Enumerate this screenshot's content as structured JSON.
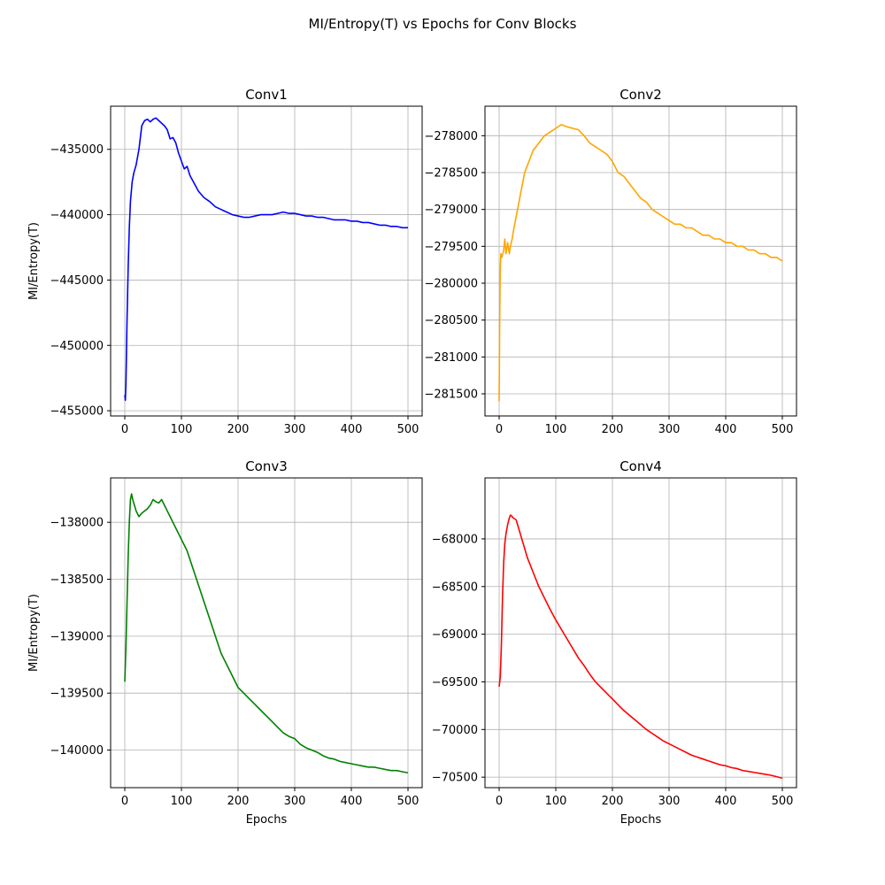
{
  "figure": {
    "suptitle": "MI/Entropy(T) vs Epochs for Conv Blocks"
  },
  "chart_data": [
    {
      "type": "line",
      "title": "Conv1",
      "xlabel": "",
      "ylabel": "MI/Entropy(T)",
      "color": "#0000ff",
      "xlim": [
        -25,
        525
      ],
      "ylim": [
        -455400,
        -431700
      ],
      "xticks": [
        0,
        100,
        200,
        300,
        400,
        500
      ],
      "xtick_labels": [
        "0",
        "100",
        "200",
        "300",
        "400",
        "500"
      ],
      "yticks": [
        -455000,
        -450000,
        -445000,
        -440000,
        -435000
      ],
      "ytick_labels": [
        "−455000",
        "−450000",
        "−445000",
        "−440000",
        "−435000"
      ],
      "grid": true,
      "x": [
        0,
        1,
        2,
        3,
        4,
        6,
        8,
        10,
        13,
        16,
        20,
        25,
        30,
        35,
        40,
        45,
        50,
        55,
        60,
        65,
        70,
        75,
        80,
        85,
        90,
        95,
        100,
        105,
        110,
        115,
        120,
        130,
        140,
        150,
        160,
        170,
        180,
        190,
        200,
        210,
        220,
        230,
        240,
        250,
        260,
        270,
        280,
        290,
        300,
        310,
        320,
        330,
        340,
        350,
        360,
        370,
        380,
        390,
        400,
        410,
        420,
        430,
        440,
        450,
        460,
        470,
        480,
        490,
        500
      ],
      "y": [
        -453800,
        -454200,
        -453000,
        -450500,
        -448000,
        -444000,
        -441000,
        -439000,
        -437500,
        -436800,
        -436200,
        -435000,
        -433200,
        -432800,
        -432700,
        -432900,
        -432700,
        -432600,
        -432800,
        -433000,
        -433200,
        -433500,
        -434200,
        -434100,
        -434500,
        -435300,
        -435900,
        -436500,
        -436300,
        -437000,
        -437400,
        -438200,
        -438700,
        -439000,
        -439400,
        -439600,
        -439800,
        -440000,
        -440100,
        -440200,
        -440200,
        -440100,
        -440000,
        -440000,
        -440000,
        -439900,
        -439800,
        -439900,
        -439900,
        -440000,
        -440100,
        -440100,
        -440200,
        -440200,
        -440300,
        -440400,
        -440400,
        -440400,
        -440500,
        -440500,
        -440600,
        -440600,
        -440700,
        -440800,
        -440800,
        -440900,
        -440900,
        -441000,
        -441000
      ]
    },
    {
      "type": "line",
      "title": "Conv2",
      "xlabel": "",
      "ylabel": "",
      "color": "#ffa500",
      "xlim": [
        -25,
        525
      ],
      "ylim": [
        -281800,
        -277600
      ],
      "xticks": [
        0,
        100,
        200,
        300,
        400,
        500
      ],
      "xtick_labels": [
        "0",
        "100",
        "200",
        "300",
        "400",
        "500"
      ],
      "yticks": [
        -281500,
        -281000,
        -280500,
        -280000,
        -279500,
        -279000,
        -278500,
        -278000
      ],
      "ytick_labels": [
        "−281500",
        "−281000",
        "−280500",
        "−280000",
        "−279500",
        "−279000",
        "−278500",
        "−278000"
      ],
      "grid": true,
      "x": [
        0,
        1,
        2,
        3,
        5,
        8,
        10,
        12,
        15,
        18,
        20,
        23,
        25,
        30,
        35,
        40,
        45,
        50,
        55,
        60,
        70,
        80,
        90,
        100,
        110,
        120,
        130,
        140,
        150,
        160,
        170,
        180,
        190,
        200,
        210,
        220,
        230,
        240,
        250,
        260,
        270,
        280,
        290,
        300,
        310,
        320,
        330,
        340,
        350,
        360,
        370,
        380,
        390,
        400,
        410,
        420,
        430,
        440,
        450,
        460,
        470,
        480,
        490,
        500
      ],
      "y": [
        -281600,
        -280500,
        -279800,
        -279600,
        -279650,
        -279550,
        -279400,
        -279600,
        -279450,
        -279600,
        -279500,
        -279400,
        -279300,
        -279100,
        -278900,
        -278700,
        -278500,
        -278400,
        -278300,
        -278200,
        -278100,
        -278000,
        -277950,
        -277900,
        -277850,
        -277880,
        -277900,
        -277920,
        -278000,
        -278100,
        -278150,
        -278200,
        -278250,
        -278350,
        -278500,
        -278550,
        -278650,
        -278750,
        -278850,
        -278900,
        -279000,
        -279050,
        -279100,
        -279150,
        -279200,
        -279200,
        -279250,
        -279250,
        -279300,
        -279350,
        -279350,
        -279400,
        -279400,
        -279450,
        -279450,
        -279500,
        -279500,
        -279550,
        -279550,
        -279600,
        -279600,
        -279650,
        -279650,
        -279700
      ]
    },
    {
      "type": "line",
      "title": "Conv3",
      "xlabel": "Epochs",
      "ylabel": "MI/Entropy(T)",
      "color": "#008000",
      "xlim": [
        -25,
        525
      ],
      "ylim": [
        -140330,
        -137610
      ],
      "xticks": [
        0,
        100,
        200,
        300,
        400,
        500
      ],
      "xtick_labels": [
        "0",
        "100",
        "200",
        "300",
        "400",
        "500"
      ],
      "yticks": [
        -140000,
        -139500,
        -139000,
        -138500,
        -138000
      ],
      "ytick_labels": [
        "−140000",
        "−139500",
        "−139000",
        "−138500",
        "−138000"
      ],
      "grid": true,
      "x": [
        0,
        2,
        4,
        6,
        8,
        10,
        12,
        14,
        17,
        20,
        25,
        30,
        35,
        40,
        45,
        50,
        55,
        60,
        65,
        70,
        75,
        80,
        85,
        90,
        95,
        100,
        110,
        120,
        130,
        140,
        150,
        160,
        170,
        180,
        190,
        200,
        210,
        220,
        230,
        240,
        250,
        260,
        270,
        280,
        290,
        300,
        310,
        320,
        330,
        340,
        350,
        360,
        370,
        380,
        390,
        400,
        410,
        420,
        430,
        440,
        450,
        460,
        470,
        480,
        490,
        500
      ],
      "y": [
        -139400,
        -139100,
        -138700,
        -138300,
        -138000,
        -137800,
        -137750,
        -137800,
        -137850,
        -137900,
        -137950,
        -137920,
        -137900,
        -137880,
        -137850,
        -137800,
        -137820,
        -137830,
        -137800,
        -137850,
        -137900,
        -137950,
        -138000,
        -138050,
        -138100,
        -138150,
        -138250,
        -138400,
        -138550,
        -138700,
        -138850,
        -139000,
        -139150,
        -139250,
        -139350,
        -139450,
        -139500,
        -139550,
        -139600,
        -139650,
        -139700,
        -139750,
        -139800,
        -139850,
        -139880,
        -139900,
        -139950,
        -139980,
        -140000,
        -140020,
        -140050,
        -140070,
        -140080,
        -140100,
        -140110,
        -140120,
        -140130,
        -140140,
        -140150,
        -140150,
        -140160,
        -140170,
        -140180,
        -140180,
        -140190,
        -140200
      ]
    },
    {
      "type": "line",
      "title": "Conv4",
      "xlabel": "Epochs",
      "ylabel": "",
      "color": "#ff0000",
      "xlim": [
        -25,
        525
      ],
      "ylim": [
        -70610,
        -67360
      ],
      "xticks": [
        0,
        100,
        200,
        300,
        400,
        500
      ],
      "xtick_labels": [
        "0",
        "100",
        "200",
        "300",
        "400",
        "500"
      ],
      "yticks": [
        -70500,
        -70000,
        -69500,
        -69000,
        -68500,
        -68000
      ],
      "ytick_labels": [
        "−70500",
        "−70000",
        "−69500",
        "−69000",
        "−68500",
        "−68000"
      ],
      "grid": true,
      "x": [
        0,
        2,
        4,
        6,
        8,
        10,
        12,
        15,
        18,
        20,
        22,
        25,
        30,
        35,
        40,
        45,
        50,
        60,
        70,
        80,
        90,
        100,
        110,
        120,
        130,
        140,
        150,
        160,
        170,
        180,
        190,
        200,
        210,
        220,
        230,
        240,
        250,
        260,
        270,
        280,
        290,
        300,
        310,
        320,
        330,
        340,
        350,
        360,
        370,
        380,
        390,
        400,
        410,
        420,
        430,
        440,
        450,
        460,
        470,
        480,
        490,
        500
      ],
      "y": [
        -69550,
        -69450,
        -69100,
        -68600,
        -68250,
        -68050,
        -67950,
        -67850,
        -67780,
        -67750,
        -67760,
        -67780,
        -67800,
        -67900,
        -68000,
        -68100,
        -68200,
        -68350,
        -68500,
        -68620,
        -68740,
        -68850,
        -68950,
        -69050,
        -69150,
        -69250,
        -69330,
        -69420,
        -69500,
        -69560,
        -69620,
        -69680,
        -69740,
        -69800,
        -69850,
        -69900,
        -69950,
        -70000,
        -70040,
        -70080,
        -70120,
        -70150,
        -70180,
        -70210,
        -70240,
        -70270,
        -70290,
        -70310,
        -70330,
        -70350,
        -70370,
        -70380,
        -70400,
        -70410,
        -70430,
        -70440,
        -70450,
        -70460,
        -70470,
        -70480,
        -70495,
        -70510
      ]
    }
  ]
}
